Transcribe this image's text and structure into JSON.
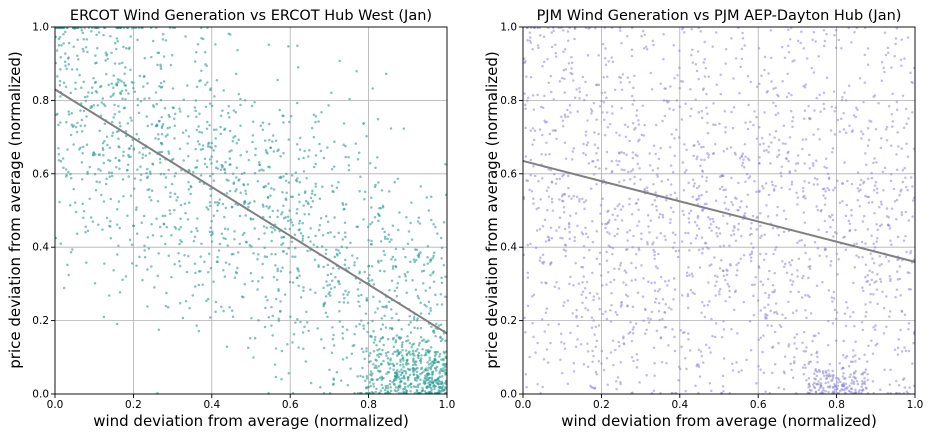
{
  "chart_data": [
    {
      "type": "scatter",
      "title": "ERCOT Wind Generation vs ERCOT Hub West (Jan)",
      "xlabel": "wind deviation from average (normalized)",
      "ylabel": "price deviation from average (normalized)",
      "xlim": [
        0,
        1
      ],
      "ylim": [
        0,
        1
      ],
      "xticks": [
        "0.0",
        "0.2",
        "0.4",
        "0.6",
        "0.8",
        "1.0"
      ],
      "yticks": [
        "0.0",
        "0.2",
        "0.4",
        "0.6",
        "0.8",
        "1.0"
      ],
      "grid": true,
      "point_color": "#2a9d94",
      "fit_color": "#808080",
      "point_count": 2000,
      "point_distribution": "dense scatter concentrated near a downward trend; heavy cluster near x=0.9-1.0, y=0.0-0.15",
      "fit_line": {
        "x": [
          0.0,
          1.0
        ],
        "y": [
          0.83,
          0.165
        ]
      }
    },
    {
      "type": "scatter",
      "title": "PJM Wind Generation vs PJM AEP-Dayton Hub (Jan)",
      "xlabel": "wind deviation from average (normalized)",
      "ylabel": "price deviation from average (normalized)",
      "xlim": [
        0,
        1
      ],
      "ylim": [
        0,
        1
      ],
      "xticks": [
        "0.0",
        "0.2",
        "0.4",
        "0.6",
        "0.8",
        "1.0"
      ],
      "yticks": [
        "0.0",
        "0.2",
        "0.4",
        "0.6",
        "0.8",
        "1.0"
      ],
      "grid": true,
      "point_color": "#8c84dc",
      "fit_color": "#808080",
      "point_count": 2000,
      "point_distribution": "nearly uniform scatter over the full range with a weak downward trend",
      "fit_line": {
        "x": [
          0.0,
          1.0
        ],
        "y": [
          0.635,
          0.36
        ]
      }
    }
  ]
}
